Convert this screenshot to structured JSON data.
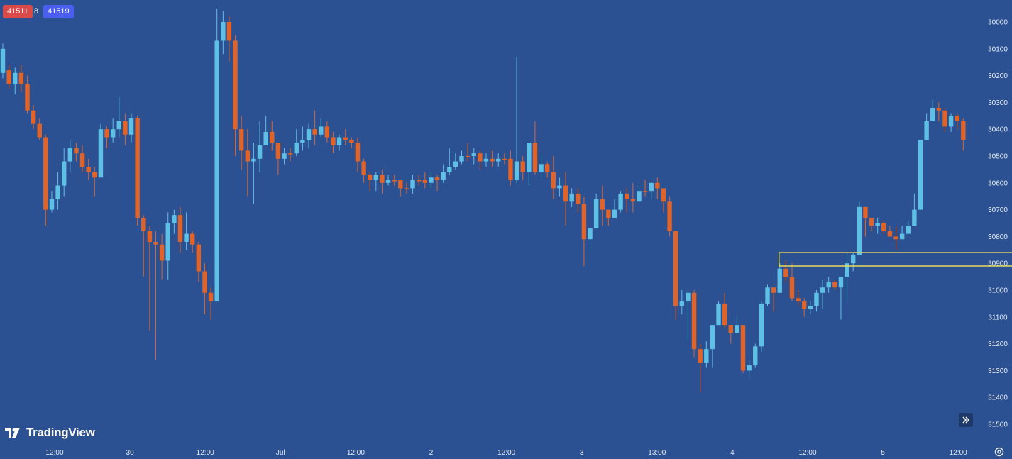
{
  "header": {
    "sell_price": "41511",
    "spread": "8",
    "buy_price": "41519",
    "sell_color": "#d94a48",
    "buy_color": "#4a5ff0"
  },
  "branding": {
    "logo_text": "TradingView",
    "logo_icon": "tradingview-logo-icon"
  },
  "controls": {
    "scroll_button_icon": "double-chevron-right-icon",
    "settings_icon": "settings-gear-icon"
  },
  "colors": {
    "background": "#2b5192",
    "up": "#5fc0e6",
    "down": "#e0642a",
    "highlight": "#e8dc5a"
  },
  "chart_data": {
    "type": "candlestick",
    "title": "",
    "xlabel": "",
    "ylabel": "",
    "y_axis": {
      "side": "right",
      "inverted": true,
      "ylim": [
        29950,
        31550
      ],
      "ticks": [
        30000,
        30100,
        30200,
        30300,
        30400,
        30500,
        30600,
        30700,
        30800,
        30900,
        31000,
        31100,
        31200,
        31300,
        31400,
        31500
      ]
    },
    "x_axis": {
      "ticks": [
        "12:00",
        "30",
        "12:00",
        "Jul",
        "12:00",
        "2",
        "12:00",
        "3",
        "13:00",
        "4",
        "12:00",
        "5",
        "12:00"
      ]
    },
    "grid": false,
    "highlight_zone": {
      "y_from": 30860,
      "y_to": 30910,
      "x_from_index": 127,
      "x_to_index": 164
    },
    "candles": [
      [
        30190,
        30100,
        30210,
        30080
      ],
      [
        30180,
        30230,
        30250,
        30160
      ],
      [
        30230,
        30190,
        30270,
        30170
      ],
      [
        30190,
        30230,
        30260,
        30160
      ],
      [
        30230,
        30330,
        30340,
        30200
      ],
      [
        30330,
        30380,
        30400,
        30310
      ],
      [
        30380,
        30430,
        30440,
        30360
      ],
      [
        30430,
        30700,
        30760,
        30420
      ],
      [
        30700,
        30660,
        30710,
        30630
      ],
      [
        30660,
        30610,
        30700,
        30560
      ],
      [
        30610,
        30520,
        30650,
        30470
      ],
      [
        30520,
        30470,
        30560,
        30440
      ],
      [
        30470,
        30490,
        30520,
        30450
      ],
      [
        30490,
        30540,
        30560,
        30460
      ],
      [
        30540,
        30560,
        30590,
        30510
      ],
      [
        30560,
        30580,
        30650,
        30540
      ],
      [
        30580,
        30400,
        30420,
        30380
      ],
      [
        30400,
        30430,
        30470,
        30390
      ],
      [
        30430,
        30400,
        30450,
        30360
      ],
      [
        30400,
        30370,
        30430,
        30280
      ],
      [
        30370,
        30420,
        30460,
        30340
      ],
      [
        30420,
        30360,
        30450,
        30340
      ],
      [
        30360,
        30730,
        30760,
        30350
      ],
      [
        30730,
        30780,
        30950,
        30720
      ],
      [
        30780,
        30820,
        31150,
        30760
      ],
      [
        30820,
        30830,
        31260,
        30780
      ],
      [
        30830,
        30890,
        30960,
        30790
      ],
      [
        30890,
        30750,
        30960,
        30710
      ],
      [
        30750,
        30720,
        30790,
        30700
      ],
      [
        30720,
        30820,
        30860,
        30690
      ],
      [
        30820,
        30790,
        30850,
        30710
      ],
      [
        30790,
        30830,
        30860,
        30780
      ],
      [
        30830,
        30930,
        30970,
        30820
      ],
      [
        30930,
        31010,
        31090,
        30900
      ],
      [
        31010,
        31040,
        31110,
        30990
      ],
      [
        31040,
        30070,
        30100,
        29950
      ],
      [
        30070,
        30000,
        30120,
        29960
      ],
      [
        30000,
        30070,
        30150,
        29980
      ],
      [
        30070,
        30400,
        30500,
        30050
      ],
      [
        30400,
        30480,
        30550,
        30350
      ],
      [
        30480,
        30520,
        30650,
        30400
      ],
      [
        30520,
        30510,
        30680,
        30450
      ],
      [
        30510,
        30460,
        30560,
        30370
      ],
      [
        30460,
        30410,
        30440,
        30350
      ],
      [
        30410,
        30450,
        30480,
        30370
      ],
      [
        30450,
        30510,
        30570,
        30480
      ],
      [
        30510,
        30490,
        30530,
        30470
      ],
      [
        30490,
        30490,
        30520,
        30470
      ],
      [
        30490,
        30450,
        30500,
        30400
      ],
      [
        30450,
        30440,
        30480,
        30390
      ],
      [
        30440,
        30400,
        30470,
        30380
      ],
      [
        30400,
        30420,
        30460,
        30330
      ],
      [
        30420,
        30390,
        30430,
        30360
      ],
      [
        30390,
        30430,
        30450,
        30370
      ],
      [
        30430,
        30460,
        30490,
        30410
      ],
      [
        30460,
        30430,
        30480,
        30420
      ],
      [
        30430,
        30440,
        30460,
        30400
      ],
      [
        30440,
        30450,
        30470,
        30430
      ],
      [
        30450,
        30520,
        30560,
        30430
      ],
      [
        30520,
        30570,
        30600,
        30510
      ],
      [
        30570,
        30590,
        30630,
        30560
      ],
      [
        30590,
        30570,
        30630,
        30560
      ],
      [
        30570,
        30600,
        30640,
        30550
      ],
      [
        30600,
        30590,
        30610,
        30570
      ],
      [
        30590,
        30590,
        30610,
        30570
      ],
      [
        30590,
        30620,
        30650,
        30590
      ],
      [
        30620,
        30620,
        30640,
        30600
      ],
      [
        30620,
        30590,
        30640,
        30570
      ],
      [
        30590,
        30590,
        30610,
        30570
      ],
      [
        30590,
        30600,
        30620,
        30560
      ],
      [
        30600,
        30580,
        30620,
        30560
      ],
      [
        30580,
        30590,
        30630,
        30570
      ],
      [
        30590,
        30560,
        30600,
        30530
      ],
      [
        30560,
        30540,
        30570,
        30470
      ],
      [
        30540,
        30520,
        30550,
        30490
      ],
      [
        30520,
        30500,
        30530,
        30480
      ],
      [
        30500,
        30500,
        30520,
        30450
      ],
      [
        30500,
        30490,
        30530,
        30470
      ],
      [
        30490,
        30520,
        30550,
        30480
      ],
      [
        30520,
        30510,
        30540,
        30490
      ],
      [
        30510,
        30520,
        30540,
        30480
      ],
      [
        30520,
        30510,
        30540,
        30490
      ],
      [
        30510,
        30510,
        30530,
        30490
      ],
      [
        30510,
        30590,
        30610,
        30480
      ],
      [
        30590,
        30520,
        30600,
        30130
      ],
      [
        30520,
        30560,
        30590,
        30500
      ],
      [
        30560,
        30450,
        30610,
        30450
      ],
      [
        30450,
        30560,
        30570,
        30370
      ],
      [
        30560,
        30530,
        30580,
        30500
      ],
      [
        30530,
        30560,
        30580,
        30520
      ],
      [
        30560,
        30620,
        30660,
        30500
      ],
      [
        30620,
        30610,
        30650,
        30580
      ],
      [
        30610,
        30670,
        30760,
        30560
      ],
      [
        30670,
        30640,
        30690,
        30620
      ],
      [
        30640,
        30680,
        30710,
        30620
      ],
      [
        30680,
        30810,
        30910,
        30650
      ],
      [
        30810,
        30770,
        30850,
        30770
      ],
      [
        30770,
        30660,
        30680,
        30640
      ],
      [
        30660,
        30700,
        30760,
        30610
      ],
      [
        30700,
        30730,
        30760,
        30710
      ],
      [
        30730,
        30700,
        30730,
        30660
      ],
      [
        30700,
        30640,
        30710,
        30630
      ],
      [
        30640,
        30660,
        30710,
        30620
      ],
      [
        30660,
        30670,
        30710,
        30600
      ],
      [
        30670,
        30630,
        30670,
        30610
      ],
      [
        30630,
        30630,
        30650,
        30590
      ],
      [
        30630,
        30600,
        30660,
        30600
      ],
      [
        30600,
        30620,
        30660,
        30580
      ],
      [
        30620,
        30670,
        30710,
        30650
      ],
      [
        30670,
        30780,
        30800,
        30650
      ],
      [
        30780,
        31060,
        31110,
        30780
      ],
      [
        31060,
        31040,
        31090,
        31000
      ],
      [
        31040,
        31010,
        31190,
        31000
      ],
      [
        31010,
        31220,
        31250,
        31000
      ],
      [
        31220,
        31270,
        31380,
        31200
      ],
      [
        31270,
        31220,
        31290,
        31190
      ],
      [
        31220,
        31130,
        31290,
        31130
      ],
      [
        31130,
        31050,
        31110,
        31040
      ],
      [
        31050,
        31130,
        31140,
        31010
      ],
      [
        31130,
        31160,
        31200,
        31130
      ],
      [
        31160,
        31130,
        31150,
        31100
      ],
      [
        31130,
        31300,
        31310,
        31150
      ],
      [
        31300,
        31280,
        31330,
        31260
      ],
      [
        31280,
        31210,
        31290,
        31200
      ],
      [
        31210,
        31050,
        31230,
        31040
      ],
      [
        31050,
        30990,
        31060,
        30980
      ],
      [
        30990,
        31010,
        31080,
        30990
      ],
      [
        31010,
        30920,
        30930,
        30900
      ],
      [
        30920,
        30950,
        30970,
        30890
      ],
      [
        30950,
        31030,
        31040,
        30900
      ],
      [
        31030,
        31040,
        31060,
        31000
      ],
      [
        31040,
        31070,
        31100,
        31030
      ],
      [
        31070,
        31060,
        31090,
        31040
      ],
      [
        31060,
        31010,
        31080,
        31000
      ],
      [
        31010,
        30990,
        31070,
        30960
      ],
      [
        30990,
        30970,
        31010,
        30950
      ],
      [
        30970,
        30990,
        31000,
        30960
      ],
      [
        30990,
        30950,
        31110,
        30960
      ],
      [
        30950,
        30900,
        31040,
        30860
      ],
      [
        30900,
        30870,
        30930,
        30860
      ],
      [
        30870,
        30690,
        30710,
        30670
      ],
      [
        30690,
        30730,
        30800,
        30690
      ],
      [
        30730,
        30760,
        30780,
        30740
      ],
      [
        30760,
        30750,
        30790,
        30730
      ],
      [
        30750,
        30780,
        30790,
        30740
      ],
      [
        30780,
        30800,
        30780,
        30760
      ],
      [
        30800,
        30810,
        30850,
        30760
      ],
      [
        30810,
        30790,
        30810,
        30760
      ],
      [
        30790,
        30760,
        30770,
        30740
      ],
      [
        30760,
        30700,
        30720,
        30640
      ],
      [
        30700,
        30440,
        30460,
        30440
      ],
      [
        30440,
        30370,
        30420,
        30340
      ],
      [
        30370,
        30320,
        30340,
        30290
      ],
      [
        30320,
        30330,
        30370,
        30300
      ],
      [
        30330,
        30390,
        30410,
        30320
      ],
      [
        30390,
        30350,
        30410,
        30340
      ],
      [
        30350,
        30370,
        30400,
        30340
      ],
      [
        30370,
        30440,
        30480,
        30360
      ]
    ]
  }
}
